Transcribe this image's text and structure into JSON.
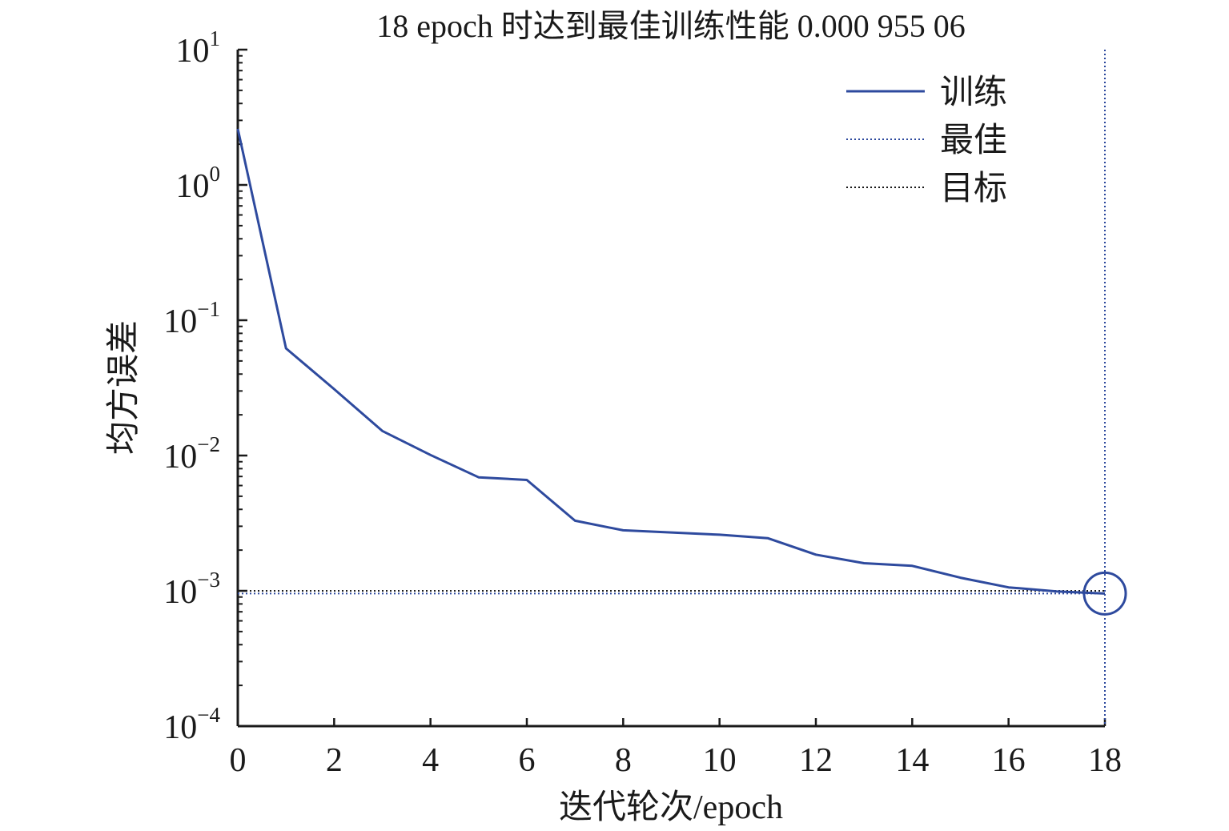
{
  "chart_data": {
    "type": "line",
    "title": "18 epoch 时达到最佳训练性能 0.000 955 06",
    "xlabel": "迭代轮次/epoch",
    "ylabel": "均方误差",
    "x_ticks": [
      "0",
      "2",
      "4",
      "6",
      "8",
      "10",
      "12",
      "14",
      "16",
      "18"
    ],
    "y_ticks": [
      {
        "base": "10",
        "exp": "−4"
      },
      {
        "base": "10",
        "exp": "−3"
      },
      {
        "base": "10",
        "exp": "−2"
      },
      {
        "base": "10",
        "exp": "−1"
      },
      {
        "base": "10",
        "exp": "0"
      },
      {
        "base": "10",
        "exp": "1"
      }
    ],
    "xlim": [
      0,
      18
    ],
    "ylim": [
      0.0001,
      10
    ],
    "y_scale": "log",
    "grid": false,
    "legend_position": "top-right",
    "legend": [
      {
        "label": "训练",
        "style": "solid",
        "color": "#2e4a9e"
      },
      {
        "label": "最佳",
        "style": "dotted",
        "color": "#2e4a9e"
      },
      {
        "label": "目标",
        "style": "dotted",
        "color": "#1a1a1a"
      }
    ],
    "series": [
      {
        "name": "训练",
        "color": "#2e4a9e",
        "x": [
          0,
          1,
          2,
          3,
          4,
          5,
          6,
          7,
          8,
          9,
          10,
          11,
          12,
          13,
          14,
          15,
          16,
          17,
          18
        ],
        "values": [
          2.6,
          0.062,
          0.031,
          0.0152,
          0.0101,
          0.0069,
          0.0066,
          0.0033,
          0.0028,
          0.0027,
          0.0026,
          0.00245,
          0.00185,
          0.0016,
          0.00153,
          0.00125,
          0.00106,
          0.00099,
          0.00095506
        ]
      }
    ],
    "goal_value": 0.001,
    "best_epoch": 18,
    "best_value": 0.00095506
  }
}
